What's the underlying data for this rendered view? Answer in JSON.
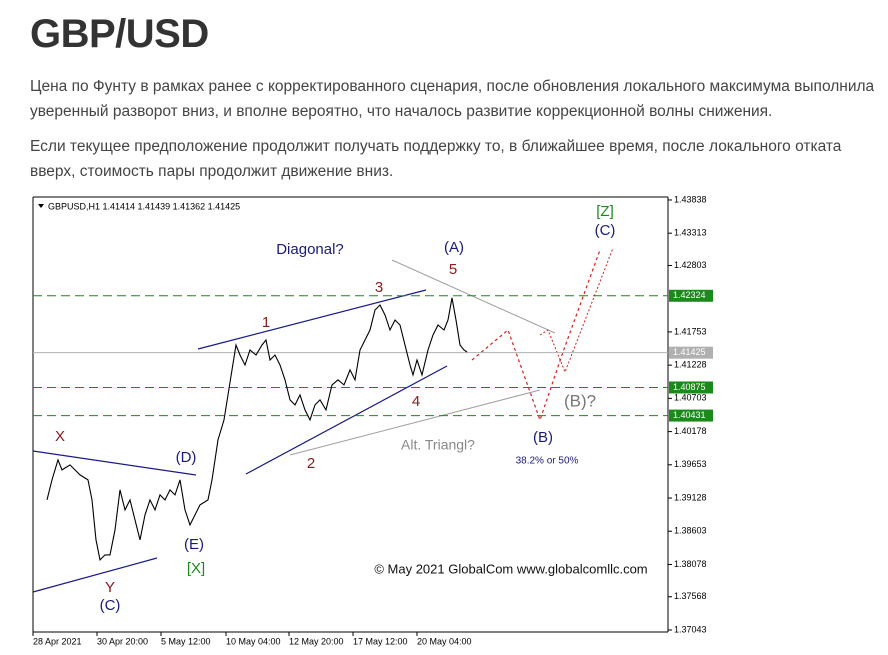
{
  "header": {
    "title": "GBP/USD"
  },
  "paragraphs": [
    "Цена по Фунту в рамках ранее с корректированного сценария, после обновления локального максимума выполнила уверенный разворот вниз, и вполне вероятно, что началось развитие коррекционной волны снижения.",
    "Если текущее предположение продолжит получать поддержку то, в ближайшее время, после локального отката вверх, стоимость пары продолжит движение вниз."
  ],
  "chart_data": {
    "type": "line",
    "subtitle": "GBPUSD,H1  1.41414 1.41439 1.41362 1.41425",
    "color": "#000000",
    "x": [
      14,
      19,
      25,
      29,
      37,
      47,
      55,
      59,
      63,
      67,
      72,
      77,
      82,
      87,
      92,
      97,
      102,
      107,
      112,
      117,
      122,
      127,
      132,
      137,
      142,
      147,
      152,
      157,
      162,
      167,
      175,
      179,
      185,
      191,
      195,
      199,
      203,
      207,
      212,
      217,
      223,
      229,
      233,
      237,
      242,
      247,
      252,
      257,
      262,
      267,
      272,
      277,
      282,
      287,
      293,
      299,
      305,
      311,
      317,
      322,
      327,
      332,
      337,
      342,
      347,
      352,
      357,
      362,
      367,
      372,
      377,
      380,
      384,
      389,
      395,
      400,
      405,
      411,
      415,
      419,
      423,
      427,
      431,
      434
    ],
    "values": [
      1.39098,
      1.39414,
      1.3973,
      1.39572,
      1.39651,
      1.39493,
      1.39414,
      1.39098,
      1.38466,
      1.3815,
      1.38229,
      1.38229,
      1.38624,
      1.39256,
      1.3894,
      1.39098,
      1.38782,
      1.38466,
      1.38861,
      1.39098,
      1.3894,
      1.39177,
      1.39098,
      1.39256,
      1.39177,
      1.39414,
      1.3894,
      1.38703,
      1.38861,
      1.39019,
      1.39098,
      1.39414,
      1.40046,
      1.40362,
      1.40757,
      1.41152,
      1.41547,
      1.41389,
      1.41231,
      1.41468,
      1.41389,
      1.41547,
      1.41626,
      1.4131,
      1.41389,
      1.41231,
      1.40994,
      1.40678,
      1.40599,
      1.40757,
      1.4052,
      1.40362,
      1.40599,
      1.40678,
      1.4052,
      1.40915,
      1.40994,
      1.40915,
      1.41152,
      1.40994,
      1.41468,
      1.41626,
      1.41784,
      1.421,
      1.42179,
      1.42021,
      1.41784,
      1.41942,
      1.41863,
      1.41547,
      1.41231,
      1.41073,
      1.4131,
      1.41073,
      1.41468,
      1.41705,
      1.41863,
      1.41784,
      1.41942,
      1.4229,
      1.41942,
      1.41547,
      1.41468,
      1.41436
    ],
    "xlim": [
      0,
      635
    ],
    "xticks": [
      {
        "value": 0,
        "label": "28 Apr 2021"
      },
      {
        "value": 64,
        "label": "30 Apr 20:00"
      },
      {
        "value": 128,
        "label": "5 May 12:00"
      },
      {
        "value": 193,
        "label": "10 May 04:00"
      },
      {
        "value": 256,
        "label": "12 May 20:00"
      },
      {
        "value": 320,
        "label": "17 May 12:00"
      },
      {
        "value": 384,
        "label": "20 May 04:00"
      }
    ],
    "ylim": [
      1.37011,
      1.43885
    ],
    "yticks": [
      1.43838,
      1.43313,
      1.42803,
      1.41753,
      1.41228,
      1.40703,
      1.40178,
      1.39653,
      1.39128,
      1.38603,
      1.38078,
      1.37568,
      1.37043
    ],
    "levels": [
      {
        "value": 1.42324,
        "color": "#1a8a1a",
        "dashed": true
      },
      {
        "value": 1.41425,
        "color": "#b0b0b0",
        "dashed": false
      },
      {
        "value": 1.40875,
        "color": "#1a8a1a",
        "dashed": true
      },
      {
        "value": 1.40431,
        "color": "#1a8a1a",
        "dashed": true
      }
    ],
    "annotations": [
      {
        "text": "Diagonal?",
        "color": "#1a1a7a"
      },
      {
        "text": "(A)",
        "color": "#1a1a7a"
      },
      {
        "text": "5",
        "color": "#8b1a1a"
      },
      {
        "text": "3",
        "color": "#8b1a1a"
      },
      {
        "text": "1",
        "color": "#8b1a1a"
      },
      {
        "text": "[Z]",
        "color": "#1a8a1a"
      },
      {
        "text": "(C)",
        "color": "#1a1a7a"
      },
      {
        "text": "X",
        "color": "#8b1a1a"
      },
      {
        "text": "(D)",
        "color": "#1a1a7a"
      },
      {
        "text": "2",
        "color": "#8b1a1a"
      },
      {
        "text": "4",
        "color": "#8b1a1a"
      },
      {
        "text": "Alt. Triangl?",
        "color": "#888888"
      },
      {
        "text": "(B)",
        "color": "#1a1a7a"
      },
      {
        "text": "38.2% or 50%",
        "color": "#1a1a7a"
      },
      {
        "text": "(B)?",
        "color": "#777777"
      },
      {
        "text": "(E)",
        "color": "#1a1a7a"
      },
      {
        "text": "[X]",
        "color": "#1a8a1a"
      },
      {
        "text": "Y",
        "color": "#8b1a1a"
      },
      {
        "text": "(C)",
        "color": "#1a1a7a"
      },
      {
        "text": "© May 2021 GlobalCom www.globalcomllc.com",
        "color": "#111111"
      }
    ]
  }
}
